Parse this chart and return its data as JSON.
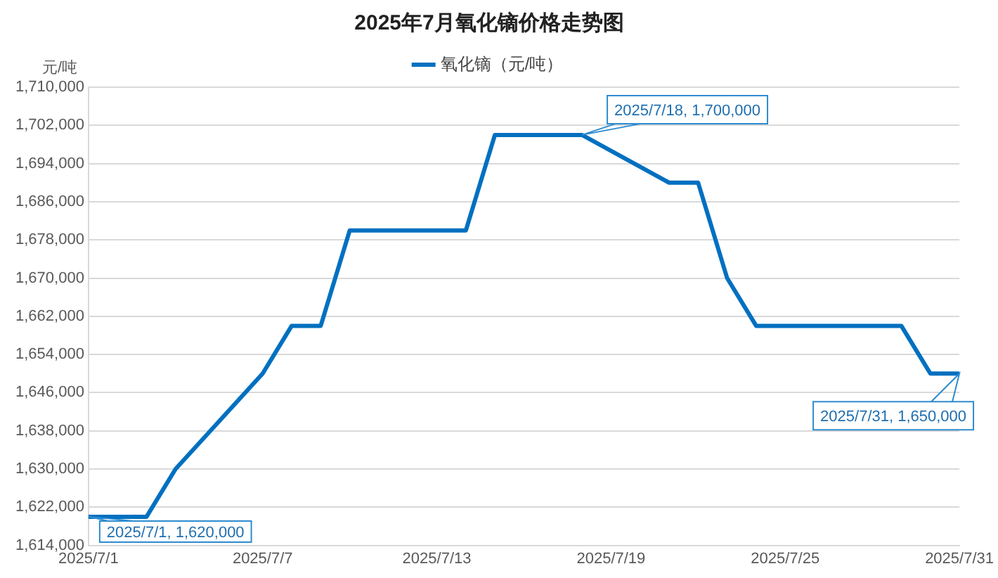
{
  "chart_data": {
    "type": "line",
    "title": "2025年7月氧化镝价格走势图",
    "ylabel": "元/吨",
    "x": [
      "2025-07-01",
      "2025-07-03",
      "2025-07-04",
      "2025-07-07",
      "2025-07-08",
      "2025-07-09",
      "2025-07-10",
      "2025-07-14",
      "2025-07-15",
      "2025-07-18",
      "2025-07-21",
      "2025-07-22",
      "2025-07-23",
      "2025-07-24",
      "2025-07-29",
      "2025-07-30",
      "2025-07-31"
    ],
    "series": [
      {
        "name": "氧化镝（元/吨）",
        "color": "#0070c0",
        "values": [
          1620000,
          1620000,
          1630000,
          1650000,
          1660000,
          1660000,
          1680000,
          1680000,
          1700000,
          1700000,
          1690000,
          1690000,
          1670000,
          1660000,
          1660000,
          1650000,
          1650000
        ]
      }
    ],
    "xlim": [
      "2025-07-01",
      "2025-07-31"
    ],
    "xticks": [
      {
        "value": "2025-07-01",
        "label": "2025/7/1"
      },
      {
        "value": "2025-07-07",
        "label": "2025/7/7"
      },
      {
        "value": "2025-07-13",
        "label": "2025/7/13"
      },
      {
        "value": "2025-07-19",
        "label": "2025/7/19"
      },
      {
        "value": "2025-07-25",
        "label": "2025/7/25"
      },
      {
        "value": "2025-07-31",
        "label": "2025/7/31"
      }
    ],
    "ylim": [
      1614000,
      1710000
    ],
    "yticks": [
      {
        "value": 1614000,
        "label": "1,614,000"
      },
      {
        "value": 1622000,
        "label": "1,622,000"
      },
      {
        "value": 1630000,
        "label": "1,630,000"
      },
      {
        "value": 1638000,
        "label": "1,638,000"
      },
      {
        "value": 1646000,
        "label": "1,646,000"
      },
      {
        "value": 1654000,
        "label": "1,654,000"
      },
      {
        "value": 1662000,
        "label": "1,662,000"
      },
      {
        "value": 1670000,
        "label": "1,670,000"
      },
      {
        "value": 1678000,
        "label": "1,678,000"
      },
      {
        "value": 1686000,
        "label": "1,686,000"
      },
      {
        "value": 1694000,
        "label": "1,694,000"
      },
      {
        "value": 1702000,
        "label": "1,702,000"
      },
      {
        "value": 1710000,
        "label": "1,710,000"
      }
    ],
    "annotations": [
      {
        "text": "2025/7/1, 1,620,000",
        "x": "2025-07-01",
        "y": 1620000
      },
      {
        "text": "2025/7/18, 1,700,000",
        "x": "2025-07-18",
        "y": 1700000
      },
      {
        "text": "2025/7/31, 1,650,000",
        "x": "2025-07-31",
        "y": 1650000
      }
    ],
    "grid": "y",
    "legend": "top",
    "marker": "none",
    "line_style": "solid"
  }
}
